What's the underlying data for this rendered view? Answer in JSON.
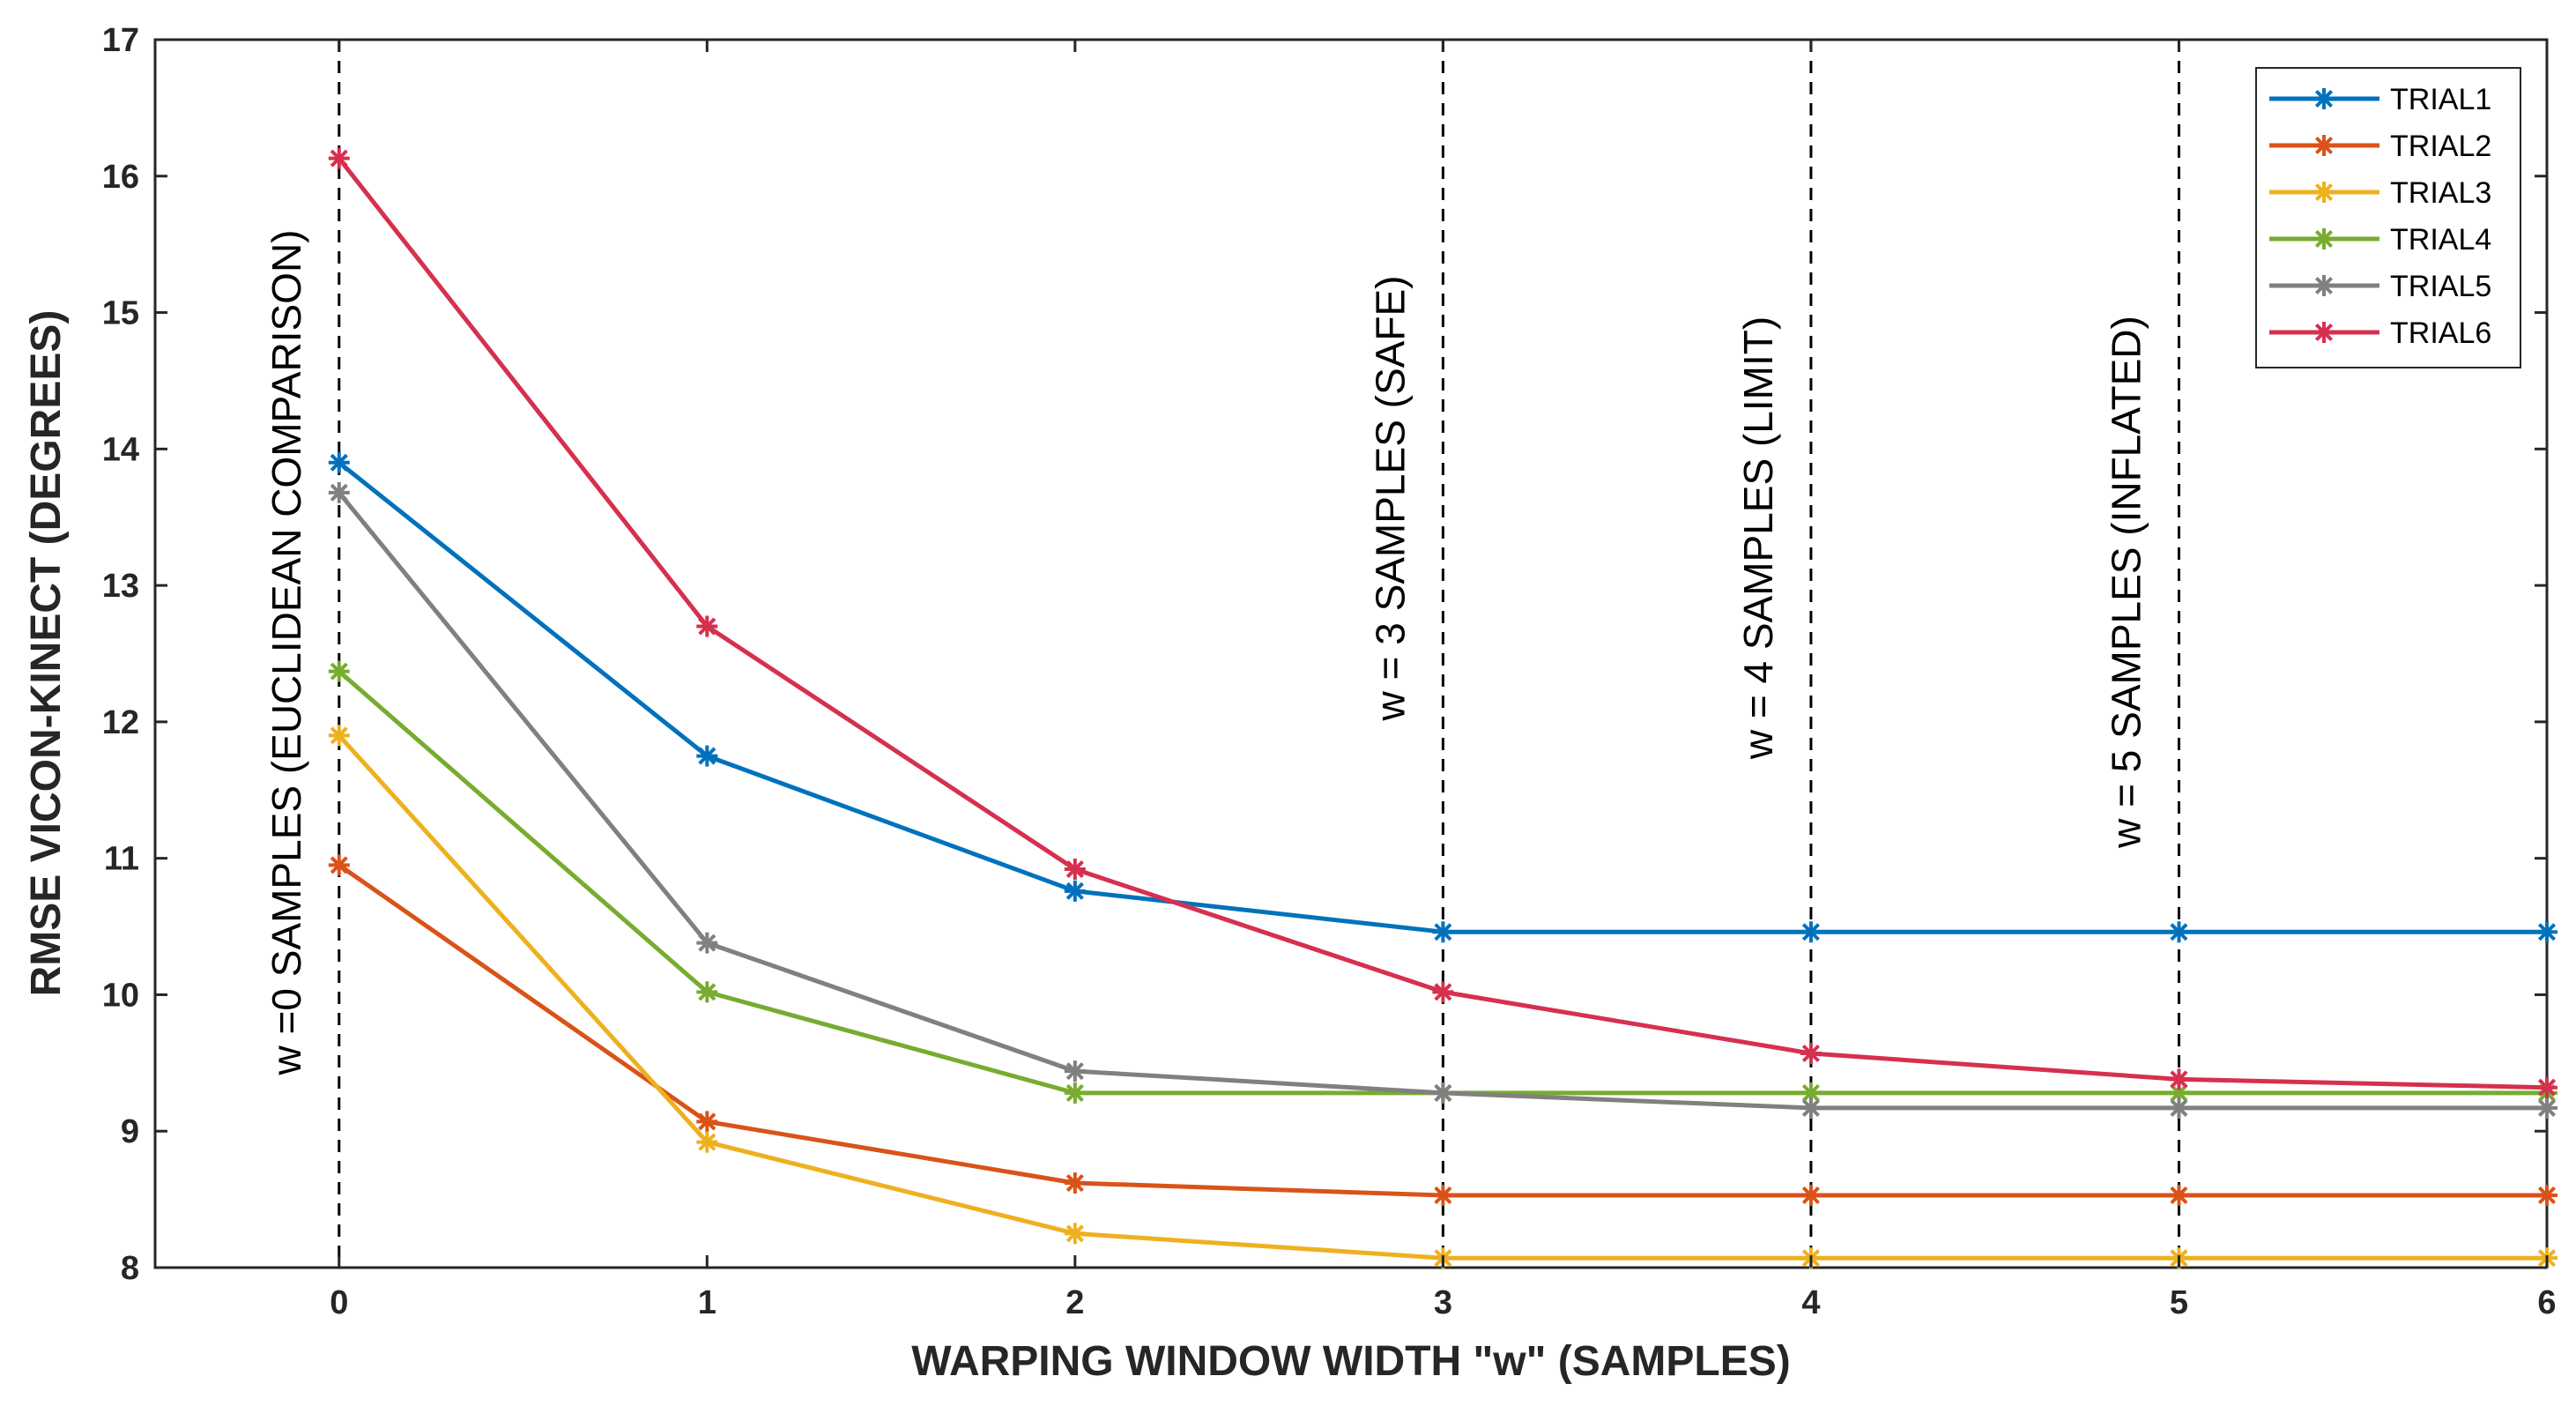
{
  "chart_data": {
    "type": "line",
    "title": "",
    "xlabel": "WARPING WINDOW WIDTH \"w\" (SAMPLES)",
    "ylabel": "RMSE  VICON-KINECT  (DEGREES)",
    "x": [
      0,
      1,
      2,
      3,
      4,
      5,
      6
    ],
    "xlim": [
      -0.5,
      6
    ],
    "ylim": [
      8,
      17
    ],
    "xticks": [
      0,
      1,
      2,
      3,
      4,
      5,
      6
    ],
    "yticks": [
      8,
      9,
      10,
      11,
      12,
      13,
      14,
      15,
      16,
      17
    ],
    "legend_position": "top-right",
    "series": [
      {
        "name": "TRIAL1",
        "color": "#0072BD",
        "values": [
          13.9,
          11.75,
          10.76,
          10.46,
          10.46,
          10.46,
          10.46
        ]
      },
      {
        "name": "TRIAL2",
        "color": "#D95319",
        "values": [
          10.95,
          9.07,
          8.62,
          8.53,
          8.53,
          8.53,
          8.53
        ]
      },
      {
        "name": "TRIAL3",
        "color": "#EDB120",
        "values": [
          11.9,
          8.92,
          8.25,
          8.07,
          8.07,
          8.07,
          8.07
        ]
      },
      {
        "name": "TRIAL4",
        "color": "#77AC30",
        "values": [
          12.37,
          10.02,
          9.28,
          9.28,
          9.28,
          9.28,
          9.28
        ]
      },
      {
        "name": "TRIAL5",
        "color": "#808080",
        "values": [
          13.68,
          10.38,
          9.44,
          9.28,
          9.17,
          9.17,
          9.17
        ]
      },
      {
        "name": "TRIAL6",
        "color": "#D6304F",
        "values": [
          16.13,
          12.7,
          10.92,
          10.02,
          9.57,
          9.38,
          9.32
        ]
      }
    ],
    "vlines": [
      {
        "x": 0,
        "label": "w =0 SAMPLES (EUCLIDEAN COMPARISON)"
      },
      {
        "x": 3,
        "label": "w = 3 SAMPLES (SAFE)"
      },
      {
        "x": 4,
        "label": "w = 4 SAMPLES (LIMIT)"
      },
      {
        "x": 5,
        "label": "w = 5 SAMPLES (INFLATED)"
      }
    ]
  }
}
